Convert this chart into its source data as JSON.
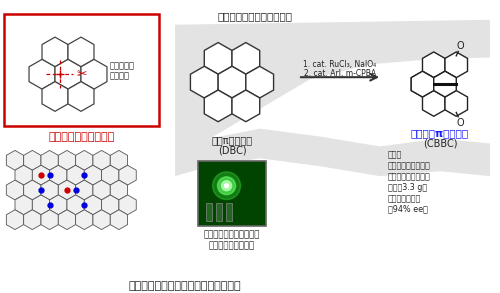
{
  "title_top": "実用性の高い合成法を開発",
  "title_bottom": "材料の基盤骨格としての有用性を実証",
  "label_simple": "シンプルな発想の転換",
  "label_dbc_line1": "平面π共役分子",
  "label_dbc_line2": "(DBC)",
  "label_cbbc_line1": "８の字型π共役分子",
  "label_cbbc_line2": "(CBBC)",
  "label_skeleton_line1": "骨格内部の",
  "label_skeleton_line2": "結合開裂",
  "reaction_step1": "1. cat. RuCl₃, NaIO₄",
  "reaction_step2": "2. cat. ArI, m-CPBA",
  "features": [
    "触媒的",
    "市販原料から２工程",
    "大スケール化が可能",
    "（最大3.3 g）",
    "不斉合成の実現",
    "（94% ee）"
  ],
  "label_tadf": "熱活性化遅延蛍光に活性",
  "label_cpl": "効率的な円偏光発光",
  "red_color": "#cc0000",
  "blue_color": "#1a1aff",
  "dark_color": "#222222",
  "gray_color": "#888888",
  "mol_color": "#333333",
  "ribbon_color": "#cccccc"
}
